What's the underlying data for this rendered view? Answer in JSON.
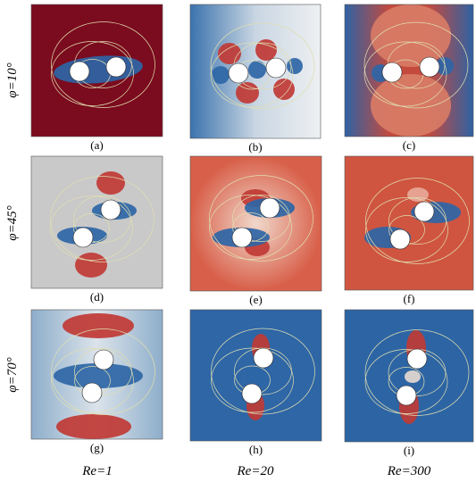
{
  "row_labels": [
    "φ=10°",
    "φ=45°",
    "φ=70°"
  ],
  "column_labels": [
    "Re=1",
    "Re=20",
    "Re=300"
  ],
  "panels": [
    "(a)",
    "(b)",
    "(c)",
    "(d)",
    "(e)",
    "(f)",
    "(g)",
    "(h)",
    "(i)"
  ]
}
